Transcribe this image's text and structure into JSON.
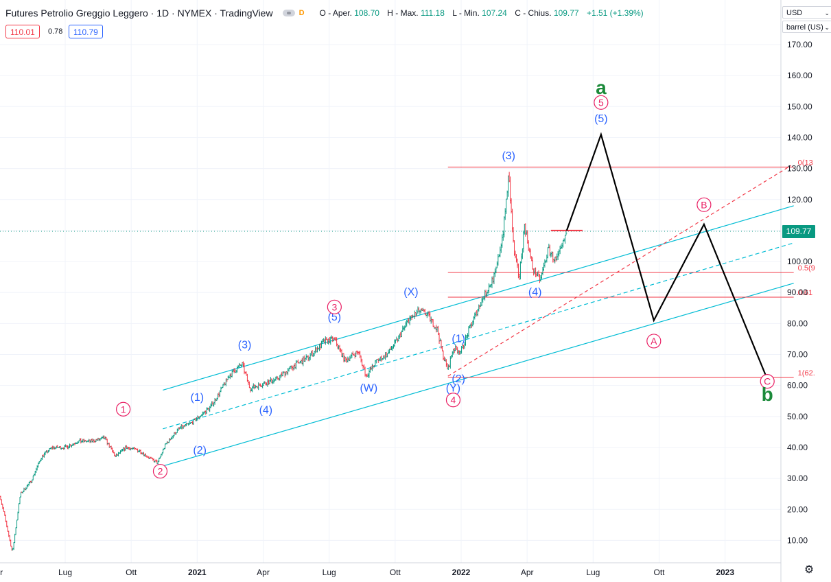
{
  "header": {
    "title": "Futures Petrolio Greggio Leggero · 1D · NYMEX · TradingView",
    "badge": "D",
    "ohlc": {
      "open_label": "O - Aper.",
      "open": "108.70",
      "high_label": "H - Max.",
      "high": "111.18",
      "low_label": "L - Min.",
      "low": "107.24",
      "close_label": "C - Chius.",
      "close": "109.77",
      "change": "+1.51 (+1.39%)"
    },
    "sell_price": "110.01",
    "spread": "0.78",
    "buy_price": "110.79"
  },
  "currency_select": "USD",
  "unit_select": "barrel (US)",
  "last_price": "109.77",
  "colors": {
    "up": "#089981",
    "down": "#f23645",
    "wave_blue": "#2962ff",
    "wave_pink": "#e91e63",
    "channel": "#00bcd4",
    "fib": "#f23645",
    "projection": "#000000",
    "green_label": "#1b8a3a"
  },
  "chart_data": {
    "type": "line",
    "title": "Futures Petrolio Greggio Leggero",
    "ylim": [
      4,
      178
    ],
    "y_ticks": [
      {
        "value": 170,
        "label": "170.00"
      },
      {
        "value": 160,
        "label": "160.00"
      },
      {
        "value": 150,
        "label": "150.00"
      },
      {
        "value": 140,
        "label": "140.00"
      },
      {
        "value": 130,
        "label": "130.00"
      },
      {
        "value": 120,
        "label": "120.00"
      },
      {
        "value": 110,
        "label": "110.00"
      },
      {
        "value": 100,
        "label": "100.00"
      },
      {
        "value": 90,
        "label": "90.00"
      },
      {
        "value": 80,
        "label": "80.00"
      },
      {
        "value": 70,
        "label": "70.00"
      },
      {
        "value": 60,
        "label": "60.00"
      },
      {
        "value": 50,
        "label": "50.00"
      },
      {
        "value": 40,
        "label": "40.00"
      },
      {
        "value": 30,
        "label": "30.00"
      },
      {
        "value": 20,
        "label": "20.00"
      },
      {
        "value": 10,
        "label": "10.00"
      }
    ],
    "x_ticks": [
      {
        "t": 2020.25,
        "label": "pr"
      },
      {
        "t": 2020.5,
        "label": "Lug"
      },
      {
        "t": 2020.75,
        "label": "Ott"
      },
      {
        "t": 2021.0,
        "label": "2021",
        "bold": true
      },
      {
        "t": 2021.25,
        "label": "Apr"
      },
      {
        "t": 2021.5,
        "label": "Lug"
      },
      {
        "t": 2021.75,
        "label": "Ott"
      },
      {
        "t": 2022.0,
        "label": "2022",
        "bold": true
      },
      {
        "t": 2022.25,
        "label": "Apr"
      },
      {
        "t": 2022.5,
        "label": "Lug"
      },
      {
        "t": 2022.75,
        "label": "Ott"
      },
      {
        "t": 2023.0,
        "label": "2023",
        "bold": true
      }
    ],
    "price_path": [
      [
        2020.24,
        28
      ],
      [
        2020.27,
        18
      ],
      [
        2020.3,
        6
      ],
      [
        2020.33,
        25
      ],
      [
        2020.37,
        29
      ],
      [
        2020.41,
        37
      ],
      [
        2020.45,
        40
      ],
      [
        2020.5,
        40
      ],
      [
        2020.55,
        42
      ],
      [
        2020.6,
        42
      ],
      [
        2020.65,
        43
      ],
      [
        2020.69,
        37
      ],
      [
        2020.73,
        40
      ],
      [
        2020.78,
        39
      ],
      [
        2020.83,
        36
      ],
      [
        2020.85,
        35
      ],
      [
        2020.88,
        41
      ],
      [
        2020.93,
        46
      ],
      [
        2020.98,
        48
      ],
      [
        2021.05,
        53
      ],
      [
        2021.08,
        57
      ],
      [
        2021.12,
        63
      ],
      [
        2021.17,
        67
      ],
      [
        2021.2,
        59
      ],
      [
        2021.23,
        60
      ],
      [
        2021.3,
        62
      ],
      [
        2021.36,
        66
      ],
      [
        2021.42,
        69
      ],
      [
        2021.48,
        74
      ],
      [
        2021.52,
        75
      ],
      [
        2021.56,
        68
      ],
      [
        2021.61,
        71
      ],
      [
        2021.64,
        63
      ],
      [
        2021.68,
        68
      ],
      [
        2021.72,
        70
      ],
      [
        2021.76,
        75
      ],
      [
        2021.8,
        81
      ],
      [
        2021.84,
        84
      ],
      [
        2021.87,
        83
      ],
      [
        2021.91,
        78
      ],
      [
        2021.93,
        70
      ],
      [
        2021.95,
        65
      ],
      [
        2021.97,
        72
      ],
      [
        2022.0,
        71
      ],
      [
        2022.03,
        78
      ],
      [
        2022.07,
        86
      ],
      [
        2022.1,
        91
      ],
      [
        2022.13,
        96
      ],
      [
        2022.16,
        110
      ],
      [
        2022.18,
        128
      ],
      [
        2022.2,
        103
      ],
      [
        2022.22,
        95
      ],
      [
        2022.24,
        112
      ],
      [
        2022.27,
        98
      ],
      [
        2022.3,
        94
      ],
      [
        2022.33,
        104
      ],
      [
        2022.36,
        100
      ],
      [
        2022.38,
        104
      ],
      [
        2022.4,
        109.77
      ]
    ],
    "projection": {
      "name": "",
      "points": [
        [
          2022.4,
          110
        ],
        [
          2022.53,
          141
        ],
        [
          2022.73,
          81
        ],
        [
          2022.92,
          112
        ],
        [
          2023.16,
          62
        ]
      ]
    },
    "channel_upper": [
      [
        2020.87,
        58.5
      ],
      [
        2023.26,
        118
      ]
    ],
    "channel_mid": [
      [
        2020.87,
        46
      ],
      [
        2023.26,
        106
      ]
    ],
    "channel_lower": [
      [
        2020.87,
        34
      ],
      [
        2023.26,
        93
      ]
    ],
    "red_trendline": [
      [
        2021.95,
        63
      ],
      [
        2023.25,
        131
      ]
    ],
    "current_level": 109.77,
    "fib_levels": [
      {
        "value": 130.5,
        "label": "0(13"
      },
      {
        "value": 96.5,
        "label": "0.5(9"
      },
      {
        "value": 88.5,
        "label": "0.61"
      },
      {
        "value": 62.6,
        "label": "1(62."
      }
    ],
    "fib_range": [
      2021.95,
      2023.26
    ],
    "wave_labels": [
      {
        "t": 2020.72,
        "y": 51,
        "text": "1",
        "style": "pink"
      },
      {
        "t": 2020.86,
        "y": 31,
        "text": "2",
        "style": "pink"
      },
      {
        "t": 2021.0,
        "y": 55,
        "text": "(1)",
        "style": "blue"
      },
      {
        "t": 2121.0,
        "y": 0,
        "text": "",
        "style": "none"
      },
      {
        "t": 2021.01,
        "y": 38,
        "text": "(2)",
        "style": "blue"
      },
      {
        "t": 2021.18,
        "y": 72,
        "text": "(3)",
        "style": "blue"
      },
      {
        "t": 2021.26,
        "y": 51,
        "text": "(4)",
        "style": "blue"
      },
      {
        "t": 2021.52,
        "y": 81,
        "text": "(5)",
        "style": "blue"
      },
      {
        "t": 2021.52,
        "y": 84,
        "text": "3",
        "style": "pink"
      },
      {
        "t": 2021.65,
        "y": 58,
        "text": "(W)",
        "style": "blue"
      },
      {
        "t": 2021.81,
        "y": 89,
        "text": "(X)",
        "style": "blue"
      },
      {
        "t": 2021.97,
        "y": 58,
        "text": "(Y)",
        "style": "blue"
      },
      {
        "t": 2021.97,
        "y": 54,
        "text": "4",
        "style": "pink"
      },
      {
        "t": 2021.99,
        "y": 74,
        "text": "(1)",
        "style": "blue"
      },
      {
        "t": 2021.99,
        "y": 61,
        "text": "(2)",
        "style": "blue"
      },
      {
        "t": 2022.18,
        "y": 133,
        "text": "(3)",
        "style": "blue"
      },
      {
        "t": 2022.28,
        "y": 89,
        "text": "(4)",
        "style": "blue"
      },
      {
        "t": 2022.53,
        "y": 145,
        "text": "(5)",
        "style": "blue"
      },
      {
        "t": 2022.53,
        "y": 150,
        "text": "5",
        "style": "pink"
      },
      {
        "t": 2022.53,
        "y": 154,
        "text": "a",
        "style": "green"
      },
      {
        "t": 2022.73,
        "y": 73,
        "text": "A",
        "style": "pink"
      },
      {
        "t": 2022.92,
        "y": 117,
        "text": "B",
        "style": "pink"
      },
      {
        "t": 2023.16,
        "y": 60,
        "text": "C",
        "style": "pink"
      },
      {
        "t": 2023.16,
        "y": 55,
        "text": "b",
        "style": "green"
      }
    ]
  }
}
